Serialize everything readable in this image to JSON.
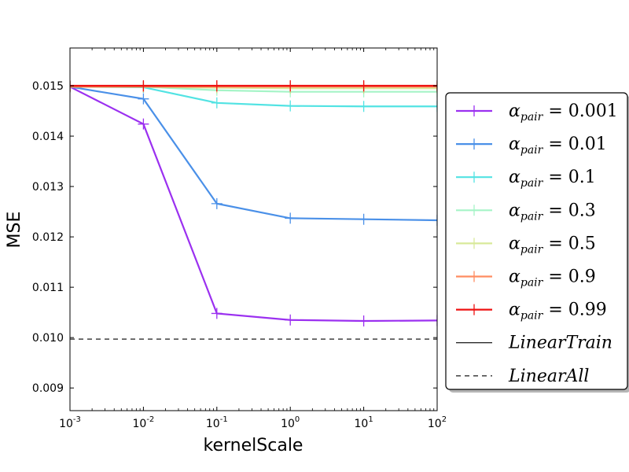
{
  "chart_data": {
    "type": "line",
    "title": "",
    "xlabel": "kernelScale",
    "ylabel": "MSE",
    "xscale": "log",
    "xlim": [
      0.001,
      100
    ],
    "ylim": [
      0.00855,
      0.01575
    ],
    "x": [
      0.001,
      0.01,
      0.1,
      1,
      10,
      100
    ],
    "x_ticks": [
      {
        "base": "10",
        "exp": "-3"
      },
      {
        "base": "10",
        "exp": "-2"
      },
      {
        "base": "10",
        "exp": "-1"
      },
      {
        "base": "10",
        "exp": "0"
      },
      {
        "base": "10",
        "exp": "1"
      },
      {
        "base": "10",
        "exp": "2"
      }
    ],
    "y_ticks": [
      {
        "value": 0.009,
        "label": "0.009"
      },
      {
        "value": 0.01,
        "label": "0.010"
      },
      {
        "value": 0.011,
        "label": "0.011"
      },
      {
        "value": 0.012,
        "label": "0.012"
      },
      {
        "value": 0.013,
        "label": "0.013"
      },
      {
        "value": 0.014,
        "label": "0.014"
      },
      {
        "value": 0.015,
        "label": "0.015"
      }
    ],
    "series": [
      {
        "name": "α_pair = 0.001",
        "alpha_value": "0.001",
        "color": "#9b30f0",
        "opacity": 1.0,
        "values": [
          0.01498,
          0.01424,
          0.01048,
          0.01035,
          0.01033,
          0.01034
        ]
      },
      {
        "name": "α_pair = 0.01",
        "alpha_value": "0.01",
        "color": "#4a90e8",
        "opacity": 1.0,
        "values": [
          0.01498,
          0.01474,
          0.01266,
          0.01237,
          0.01235,
          0.01233
        ]
      },
      {
        "name": "α_pair = 0.1",
        "alpha_value": "0.1",
        "color": "#40e0e0",
        "opacity": 0.9,
        "values": [
          0.01498,
          0.01497,
          0.01466,
          0.0146,
          0.01459,
          0.01459
        ]
      },
      {
        "name": "α_pair = 0.3",
        "alpha_value": "0.3",
        "color": "#80f0b0",
        "opacity": 0.7,
        "values": [
          0.01498,
          0.01498,
          0.01491,
          0.01488,
          0.01488,
          0.01488
        ]
      },
      {
        "name": "α_pair = 0.5",
        "alpha_value": "0.5",
        "color": "#c8e070",
        "opacity": 0.7,
        "values": [
          0.01498,
          0.01498,
          0.01496,
          0.01495,
          0.01495,
          0.01495
        ]
      },
      {
        "name": "α_pair = 0.9",
        "alpha_value": "0.9",
        "color": "#ff8050",
        "opacity": 0.9,
        "values": [
          0.01498,
          0.01498,
          0.01498,
          0.01498,
          0.01498,
          0.01498
        ]
      },
      {
        "name": "α_pair = 0.99",
        "alpha_value": "0.99",
        "color": "#ee1111",
        "opacity": 1.0,
        "values": [
          0.015,
          0.015,
          0.015,
          0.015,
          0.015,
          0.015
        ]
      }
    ],
    "reference_lines": [
      {
        "name": "LinearTrain",
        "style": "solid",
        "color": "#000000",
        "value": 0.015
      },
      {
        "name": "LinearAll",
        "style": "dashed",
        "color": "#000000",
        "value": 0.00997
      }
    ],
    "legend": {
      "placement": "right-outside",
      "alpha_symbol": "α",
      "alpha_subscript": "pair",
      "equals": "=",
      "entries": [
        "α_pair = 0.001",
        "α_pair = 0.01",
        "α_pair = 0.1",
        "α_pair = 0.3",
        "α_pair = 0.5",
        "α_pair = 0.9",
        "α_pair = 0.99",
        "LinearTrain",
        "LinearAll"
      ]
    },
    "grid": false
  }
}
